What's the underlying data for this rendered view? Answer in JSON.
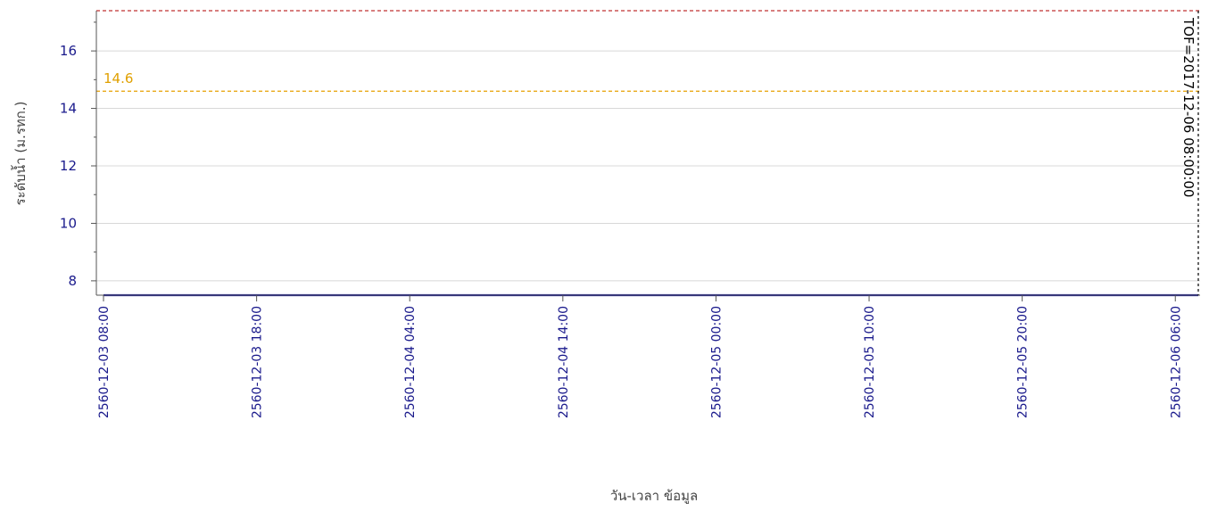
{
  "chart_data": {
    "type": "line",
    "xlabel": "วัน-เวลา ข้อมูล",
    "ylabel": "ระดับน้ำ (ม.รทก.)",
    "ylim": [
      7.5,
      17.4
    ],
    "xlim": [
      "2560-12-03 08:00",
      "2560-12-06 07:30"
    ],
    "grid": true,
    "x_ticks": [
      "2560-12-03 08:00",
      "2560-12-03 18:00",
      "2560-12-04 04:00",
      "2560-12-04 14:00",
      "2560-12-05 00:00",
      "2560-12-05 10:00",
      "2560-12-05 20:00",
      "2560-12-06 06:00"
    ],
    "y_ticks": [
      8,
      10,
      12,
      14,
      16
    ],
    "series": [
      {
        "x": [
          "2560-12-03 08:00",
          "2560-12-06 07:30"
        ],
        "values": [
          7.5,
          7.5
        ],
        "color": "#1a1aa0"
      }
    ],
    "reference_lines": [
      {
        "y": 14.6,
        "label": "14.6",
        "color": "#e8a000",
        "style": "dashed"
      },
      {
        "y": 17.4,
        "label": "",
        "color": "#c03030",
        "style": "dashed"
      }
    ],
    "vertical_marker": {
      "x": "2560-12-06 07:30",
      "label": "TOF=2017-12-06 08:00:00",
      "color": "#000000",
      "style": "dashed"
    },
    "colors": {
      "tick_text": "#1a1a8c",
      "axis_title": "#444444",
      "grid": "#d8d8d8",
      "ref_label": "#e0a000"
    }
  }
}
